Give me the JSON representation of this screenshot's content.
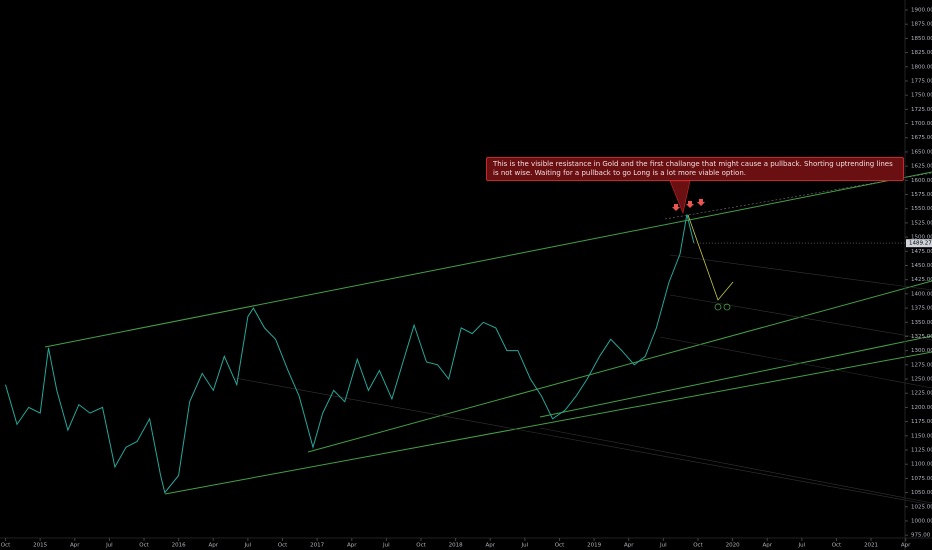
{
  "chart_data": {
    "type": "line",
    "color": "#26a69a",
    "x": [
      2014.75,
      2014.833,
      2014.917,
      2015.0,
      2015.06,
      2015.12,
      2015.2,
      2015.28,
      2015.36,
      2015.45,
      2015.54,
      2015.62,
      2015.7,
      2015.79,
      2015.87,
      2015.9,
      2016.0,
      2016.08,
      2016.17,
      2016.25,
      2016.33,
      2016.42,
      2016.5,
      2016.54,
      2016.62,
      2016.7,
      2016.79,
      2016.87,
      2016.97,
      2017.04,
      2017.12,
      2017.2,
      2017.29,
      2017.37,
      2017.45,
      2017.54,
      2017.62,
      2017.7,
      2017.79,
      2017.87,
      2017.95,
      2018.04,
      2018.12,
      2018.2,
      2018.29,
      2018.37,
      2018.45,
      2018.54,
      2018.62,
      2018.7,
      2018.79,
      2018.87,
      2018.95,
      2019.04,
      2019.12,
      2019.2,
      2019.29,
      2019.37,
      2019.45,
      2019.54,
      2019.62,
      2019.67,
      2019.7,
      2019.72
    ],
    "values": [
      1240,
      1170,
      1200,
      1190,
      1305,
      1230,
      1160,
      1205,
      1190,
      1200,
      1095,
      1130,
      1140,
      1180,
      1080,
      1050,
      1080,
      1210,
      1260,
      1230,
      1290,
      1240,
      1360,
      1375,
      1340,
      1320,
      1265,
      1220,
      1130,
      1190,
      1230,
      1210,
      1285,
      1230,
      1265,
      1215,
      1280,
      1345,
      1280,
      1275,
      1250,
      1340,
      1330,
      1350,
      1340,
      1300,
      1300,
      1250,
      1220,
      1180,
      1195,
      1220,
      1250,
      1290,
      1320,
      1300,
      1275,
      1290,
      1340,
      1420,
      1470,
      1540,
      1510,
      1490
    ],
    "xlim": [
      2014.71,
      2021.245
    ],
    "xticks": [
      {
        "value": 2014.75,
        "label": "Oct"
      },
      2015,
      {
        "value": 2015.25,
        "label": "Apr"
      },
      {
        "value": 2015.5,
        "label": "Jul"
      },
      {
        "value": 2015.75,
        "label": "Oct"
      },
      2016,
      {
        "value": 2016.25,
        "label": "Apr"
      },
      {
        "value": 2016.5,
        "label": "Jul"
      },
      {
        "value": 2016.75,
        "label": "Oct"
      },
      2017,
      {
        "value": 2017.25,
        "label": "Apr"
      },
      {
        "value": 2017.5,
        "label": "Jul"
      },
      {
        "value": 2017.75,
        "label": "Oct"
      },
      2018,
      {
        "value": 2018.25,
        "label": "Apr"
      },
      {
        "value": 2018.5,
        "label": "Jul"
      },
      {
        "value": 2018.75,
        "label": "Oct"
      },
      2019,
      {
        "value": 2019.25,
        "label": "Apr"
      },
      {
        "value": 2019.5,
        "label": "Jul"
      },
      {
        "value": 2019.75,
        "label": "Oct"
      },
      2020,
      {
        "value": 2020.25,
        "label": "Apr"
      },
      {
        "value": 2020.5,
        "label": "Jul"
      },
      {
        "value": 2020.75,
        "label": "Oct"
      },
      2021,
      {
        "value": 2021.25,
        "label": "Apr"
      }
    ],
    "ylim": [
      970,
      1917.6
    ],
    "yticks": [
      {
        "value": 975,
        "label": "975.00"
      },
      {
        "value": 1000,
        "label": "1000.00"
      },
      {
        "value": 1025,
        "label": "1025.00"
      },
      {
        "value": 1050,
        "label": "1050.00"
      },
      {
        "value": 1075,
        "label": "1075.00"
      },
      {
        "value": 1100,
        "label": "1100.00"
      },
      {
        "value": 1125,
        "label": "1125.00"
      },
      {
        "value": 1150,
        "label": "1150.00"
      },
      {
        "value": 1175,
        "label": "1175.00"
      },
      {
        "value": 1200,
        "label": "1200.00"
      },
      {
        "value": 1225,
        "label": "1225.00"
      },
      {
        "value": 1250,
        "label": "1250.00"
      },
      {
        "value": 1275,
        "label": "1275.00"
      },
      {
        "value": 1300,
        "label": "1300.00"
      },
      {
        "value": 1325,
        "label": "1325.00"
      },
      {
        "value": 1350,
        "label": "1350.00"
      },
      {
        "value": 1375,
        "label": "1375.00"
      },
      {
        "value": 1400,
        "label": "1400.00"
      },
      {
        "value": 1425,
        "label": "1425.00"
      },
      {
        "value": 1450,
        "label": "1450.00"
      },
      {
        "value": 1475,
        "label": "1475.00"
      },
      {
        "value": 1500,
        "label": "1500.00"
      },
      {
        "value": 1525,
        "label": "1525.00"
      },
      {
        "value": 1550,
        "label": "1550.00"
      },
      {
        "value": 1575,
        "label": "1575.00"
      },
      {
        "value": 1600,
        "label": "1600.00"
      },
      {
        "value": 1625,
        "label": "1625.00"
      },
      {
        "value": 1650,
        "label": "1650.00"
      },
      {
        "value": 1675,
        "label": "1675.00"
      },
      {
        "value": 1700,
        "label": "1700.00"
      },
      {
        "value": 1725,
        "label": "1725.00"
      },
      {
        "value": 1750,
        "label": "1750.00"
      },
      {
        "value": 1775,
        "label": "1775.00"
      },
      {
        "value": 1800,
        "label": "1800.00"
      },
      {
        "value": 1825,
        "label": "1825.00"
      },
      {
        "value": 1850,
        "label": "1850.00"
      },
      {
        "value": 1875,
        "label": "1875.00"
      },
      {
        "value": 1900,
        "label": "1900.00"
      }
    ],
    "last_price": 1489.27,
    "annotation": "This is the visible resistance in Gold and the first challange that might cause a pullback. Shorting uptrending lines is not wise. Waiting for a pullback to go Long is a lot more viable option."
  }
}
